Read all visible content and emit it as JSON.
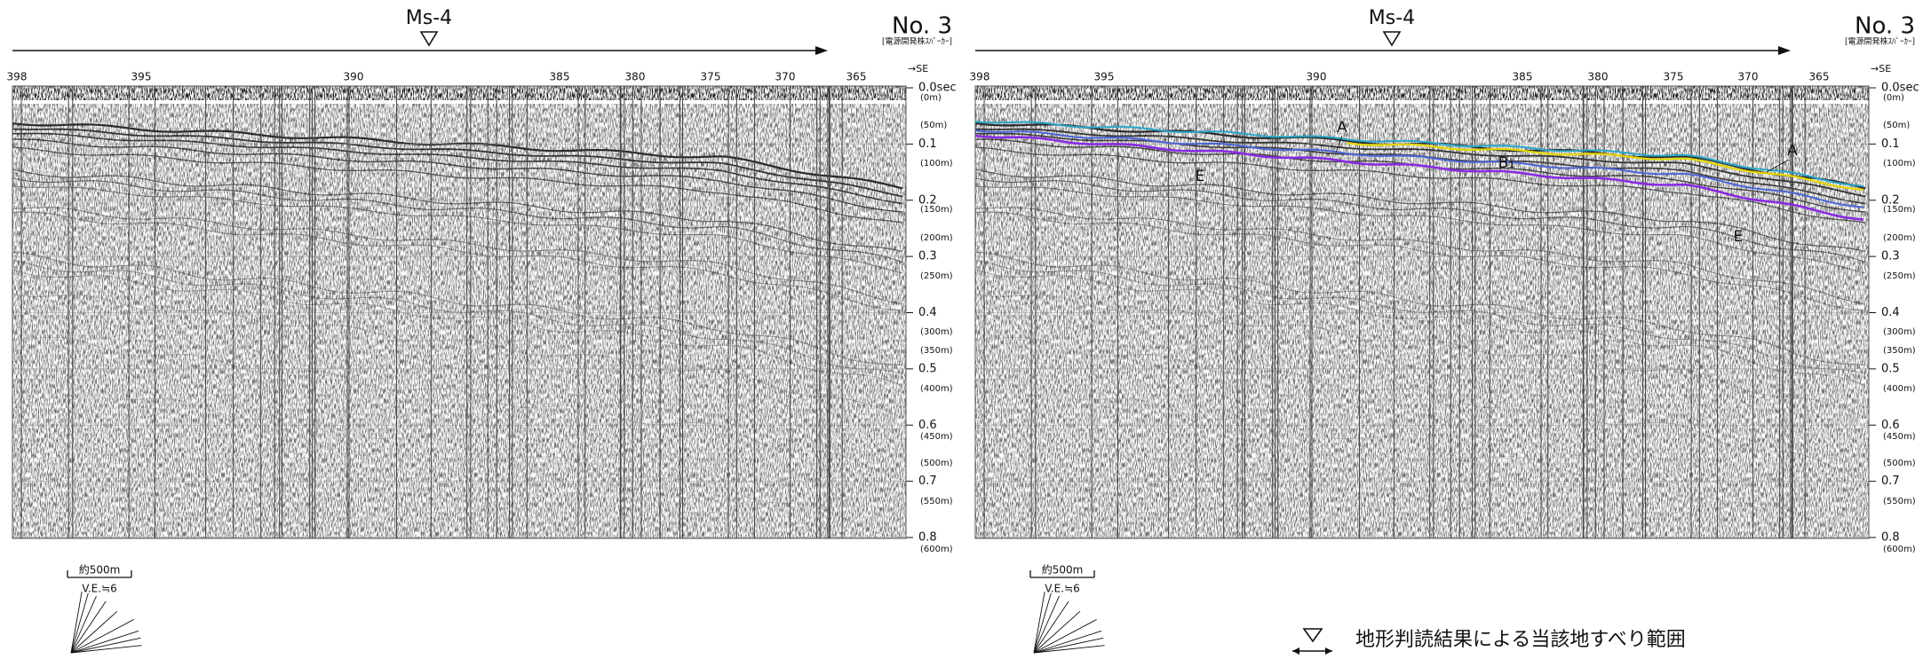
{
  "panels": [
    {
      "marker": "Ms-4",
      "line_no": "No. 3",
      "source": "[電源開発株ｽﾊﾟｰｶｰ]",
      "direction": "→SE",
      "distance_labels": [
        "398",
        "395",
        "390",
        "385",
        "380",
        "375",
        "370",
        "365"
      ],
      "time_labels": [
        "0.0sec",
        "0.1",
        "0.2",
        "0.3",
        "0.4",
        "0.5",
        "0.6",
        "0.7",
        "0.8"
      ],
      "depth_labels": [
        "(0m)",
        "(50m)",
        "(100m)",
        "(150m)",
        "(200m)",
        "(250m)",
        "(300m)",
        "(350m)",
        "(400m)",
        "(450m)",
        "(500m)",
        "(550m)",
        "(600m)"
      ],
      "scale_label": "約500m",
      "ve_label": "V.E.≒6"
    },
    {
      "marker": "Ms-4",
      "line_no": "No. 3",
      "source": "[電源開発株ｽﾊﾟｰｶｰ]",
      "direction": "→SE",
      "distance_labels": [
        "398",
        "395",
        "390",
        "385",
        "380",
        "375",
        "370",
        "365"
      ],
      "time_labels": [
        "0.0sec",
        "0.1",
        "0.2",
        "0.3",
        "0.4",
        "0.5",
        "0.6",
        "0.7",
        "0.8"
      ],
      "depth_labels": [
        "(0m)",
        "(50m)",
        "(100m)",
        "(150m)",
        "(200m)",
        "(250m)",
        "(300m)",
        "(350m)",
        "(400m)",
        "(450m)",
        "(500m)",
        "(550m)",
        "(600m)"
      ],
      "scale_label": "約500m",
      "ve_label": "V.E.≒6",
      "annotations": [
        "A",
        "B₁",
        "E",
        "A",
        "E"
      ]
    }
  ],
  "legend": {
    "text": "地形判読結果による当該地すべり範囲"
  }
}
